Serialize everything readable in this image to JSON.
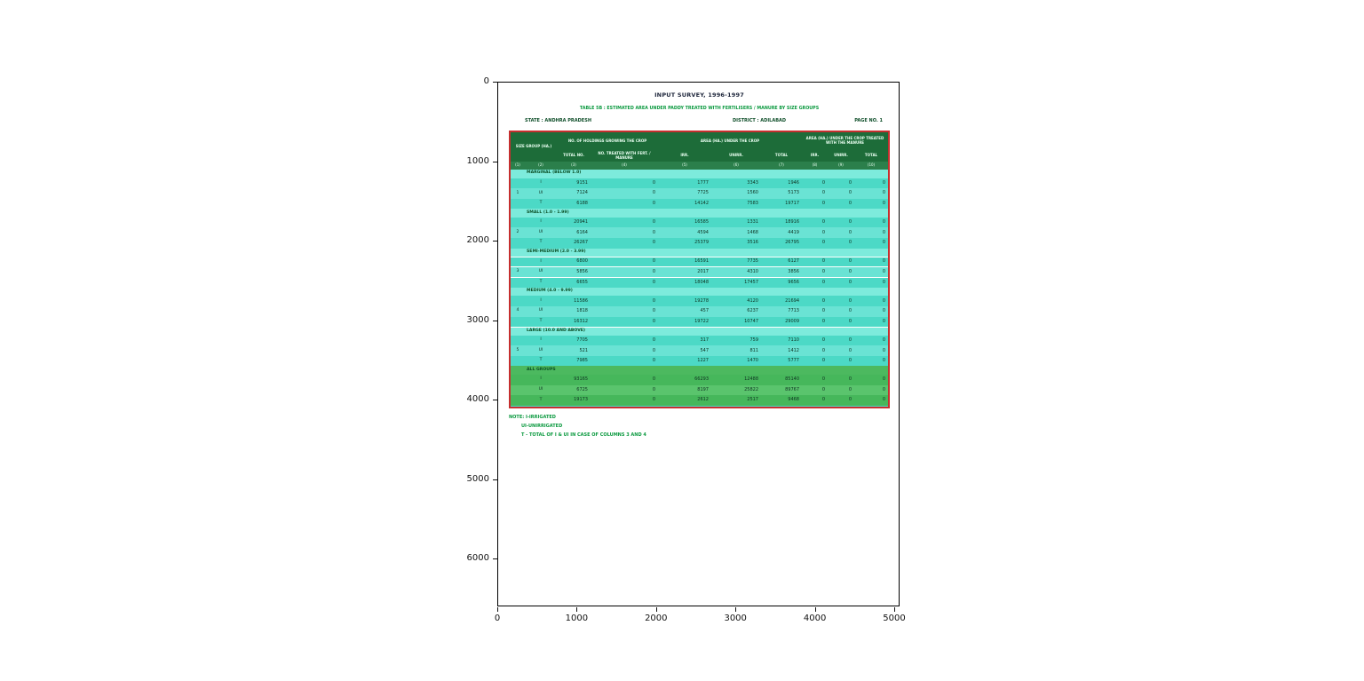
{
  "figure": {
    "x_ticks": [
      "0",
      "1000",
      "2000",
      "3000",
      "4000",
      "5000"
    ],
    "y_ticks": [
      "0",
      "1000",
      "2000",
      "3000",
      "4000",
      "5000",
      "6000"
    ]
  },
  "document": {
    "title": "INPUT SURVEY, 1996-1997",
    "subtitle": "TABLE 5B : ESTIMATED AREA UNDER PADDY TREATED WITH FERTILISERS / MANURE BY SIZE GROUPS",
    "state": "STATE : ANDHRA PRADESH",
    "district": "DISTRICT : ADILABAD",
    "page": "PAGE NO. 1",
    "notes": [
      "NOTE: I-IRRIGATED",
      "UI-UNIRRIGATED",
      "T - TOTAL OF I & UI IN CASE OF COLUMNS 3 AND 4"
    ]
  },
  "colors": {
    "header_green": "#1d6c39",
    "row_cyan": "#4cd9c6",
    "row_green": "#46b75b",
    "border_red": "#c62f2f",
    "note_green": "#0c9a40"
  },
  "table": {
    "header_rows": [
      [
        {
          "label": "SIZE GROUP (HA.)",
          "colspan": 2,
          "rowspan": 2
        },
        {
          "label": "NO. OF HOLDINGS GROWING THE CROP",
          "colspan": 2
        },
        {
          "label": "AREA (HA.) UNDER THE CROP",
          "colspan": 3
        },
        {
          "label": "AREA (HA.) UNDER THE CROP TREATED WITH THE MANURE",
          "colspan": 3
        }
      ],
      [
        {
          "label": "TOTAL NO."
        },
        {
          "label": "NO. TREATED WITH FERT. / MANURE"
        },
        {
          "label": "IRR."
        },
        {
          "label": "UNIRR."
        },
        {
          "label": "TOTAL"
        },
        {
          "label": "IRR."
        },
        {
          "label": "UNIRR."
        },
        {
          "label": "TOTAL"
        }
      ],
      [
        {
          "label": "(1)"
        },
        {
          "label": "(2)"
        },
        {
          "label": "(3)"
        },
        {
          "label": "(4)"
        },
        {
          "label": "(5)"
        },
        {
          "label": "(6)"
        },
        {
          "label": "(7)"
        },
        {
          "label": "(8)"
        },
        {
          "label": "(9)"
        },
        {
          "label": "(10)"
        }
      ]
    ],
    "groups": [
      {
        "serial": "1",
        "label": "MARGINAL (BELOW 1.0)",
        "theme": "cyan",
        "rows": [
          {
            "code": "I",
            "values": [
              "9151",
              "0",
              "1777",
              "3343",
              "1946",
              "0",
              "0",
              "0"
            ]
          },
          {
            "code": "UI",
            "values": [
              "7124",
              "0",
              "7725",
              "1560",
              "5173",
              "0",
              "0",
              "0"
            ]
          },
          {
            "code": "T",
            "values": [
              "6188",
              "0",
              "14142",
              "7583",
              "19717",
              "0",
              "0",
              "0"
            ]
          }
        ]
      },
      {
        "serial": "2",
        "label": "SMALL (1.0 - 1.99)",
        "theme": "cyan",
        "rows": [
          {
            "code": "I",
            "values": [
              "20941",
              "0",
              "16585",
              "1331",
              "18916",
              "0",
              "0",
              "0"
            ]
          },
          {
            "code": "UI",
            "values": [
              "6164",
              "0",
              "4594",
              "1468",
              "4419",
              "0",
              "0",
              "0"
            ]
          },
          {
            "code": "T",
            "values": [
              "26267",
              "0",
              "25379",
              "3516",
              "26795",
              "0",
              "0",
              "0"
            ]
          }
        ]
      },
      {
        "serial": "3",
        "label": "SEMI-MEDIUM (2.0 - 3.99)",
        "theme": "cyan",
        "rows": [
          {
            "code": "I",
            "values": [
              "6800",
              "0",
              "16591",
              "7735",
              "6127",
              "0",
              "0",
              "0"
            ],
            "sep": true
          },
          {
            "code": "UI",
            "values": [
              "5856",
              "0",
              "2017",
              "4310",
              "3856",
              "0",
              "0",
              "0"
            ],
            "sep": true
          },
          {
            "code": "T",
            "values": [
              "6655",
              "0",
              "18048",
              "17457",
              "9656",
              "0",
              "0",
              "0"
            ],
            "sep": true
          }
        ]
      },
      {
        "serial": "4",
        "label": "MEDIUM (4.0 - 9.99)",
        "theme": "cyan",
        "rows": [
          {
            "code": "I",
            "values": [
              "11586",
              "0",
              "19278",
              "4120",
              "21694",
              "0",
              "0",
              "0"
            ]
          },
          {
            "code": "UI",
            "values": [
              "1818",
              "0",
              "457",
              "6237",
              "7713",
              "0",
              "0",
              "0"
            ]
          },
          {
            "code": "T",
            "values": [
              "16312",
              "0",
              "19722",
              "10747",
              "29009",
              "0",
              "0",
              "0"
            ]
          }
        ]
      },
      {
        "serial": "5",
        "label": "LARGE (10.0 AND ABOVE)",
        "theme": "cyan",
        "sep": true,
        "rows": [
          {
            "code": "I",
            "values": [
              "7705",
              "0",
              "317",
              "759",
              "7110",
              "0",
              "0",
              "0"
            ]
          },
          {
            "code": "UI",
            "values": [
              "521",
              "0",
              "547",
              "811",
              "1412",
              "0",
              "0",
              "0"
            ]
          },
          {
            "code": "T",
            "values": [
              "7985",
              "0",
              "1227",
              "1470",
              "5777",
              "0",
              "0",
              "0"
            ]
          }
        ]
      },
      {
        "serial": "",
        "label": "ALL GROUPS",
        "theme": "green",
        "rows": [
          {
            "code": "I",
            "values": [
              "93165",
              "0",
              "66293",
              "12488",
              "85140",
              "0",
              "0",
              "0"
            ]
          },
          {
            "code": "UI",
            "values": [
              "6725",
              "0",
              "8197",
              "25822",
              "89767",
              "0",
              "0",
              "0"
            ]
          },
          {
            "code": "T",
            "values": [
              "19173",
              "0",
              "2612",
              "2517",
              "9468",
              "0",
              "0",
              "0"
            ]
          }
        ]
      }
    ]
  }
}
